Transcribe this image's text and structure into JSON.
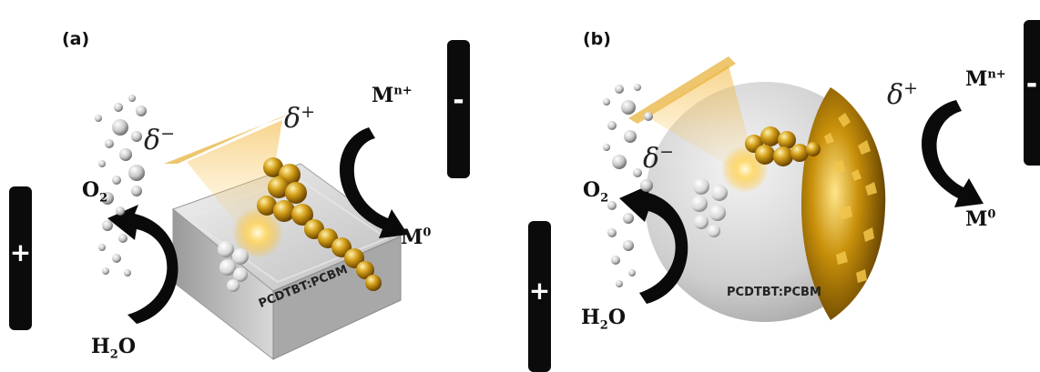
{
  "panel_a": {
    "label": "(a)",
    "h2o": {
      "main": "H",
      "sub": "2",
      "tail": "O"
    },
    "o2": {
      "main": "O",
      "sub": "2"
    },
    "mn_plus": {
      "main": "M",
      "sup": "n+"
    },
    "m0": {
      "main": "M",
      "sup": "0"
    },
    "delta_minus": {
      "main": "δ",
      "sup": "−"
    },
    "delta_plus": {
      "main": "δ",
      "sup": "+"
    },
    "material": "PCDTBT:PCBM",
    "plus_sign": "+",
    "minus_sign": "-"
  },
  "panel_b": {
    "label": "(b)",
    "h2o": {
      "main": "H",
      "sub": "2",
      "tail": "O"
    },
    "o2": {
      "main": "O",
      "sub": "2"
    },
    "mn_plus": {
      "main": "M",
      "sup": "n+"
    },
    "m0": {
      "main": "M",
      "sup": "0"
    },
    "delta_minus": {
      "main": "δ",
      "sup": "−"
    },
    "delta_plus": {
      "main": "δ",
      "sup": "+"
    },
    "material": "PCDTBT:PCBM",
    "plus_sign": "+",
    "minus_sign": "-"
  },
  "colors": {
    "electrode": "#0b0b0b",
    "gold": "#d4a019",
    "gold_dark": "#8a5a00",
    "substrate": "#dcdcdc",
    "light_glow": "#ffd866"
  }
}
